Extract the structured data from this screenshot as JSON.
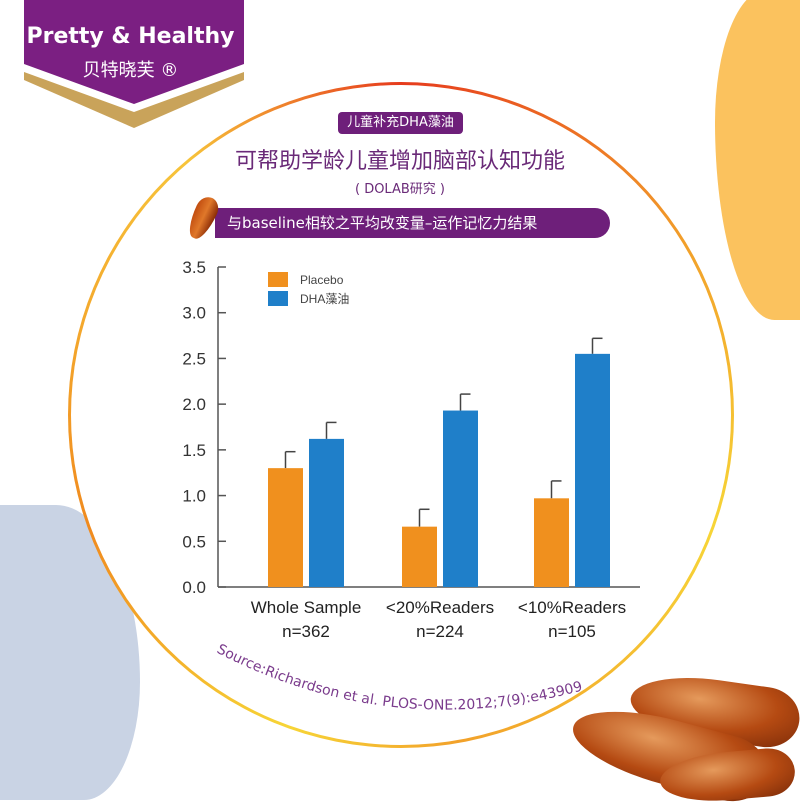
{
  "brand": {
    "name_en": "Pretty & Healthy",
    "name_cn": "贝特晓芙 ®",
    "color": "#7b1f82",
    "gold": "#c9a35a"
  },
  "header": {
    "badge": "儿童补充DHA藻油",
    "headline": "可帮助学龄儿童增加脑部认知功能",
    "study": "( DOLAB研究 )",
    "banner": "与baseline相较之平均改变量–运作记忆力结果"
  },
  "source": "Source:Richardson et al. PLOS-ONE.2012;7(9):e43909",
  "chart_data": {
    "type": "bar",
    "title": "与baseline相较之平均改变量–运作记忆力结果",
    "categories": [
      "Whole Sample",
      "<20%Readers",
      "<10%Readers"
    ],
    "category_n": [
      "n=362",
      "n=224",
      "n=105"
    ],
    "series": [
      {
        "name": "Placebo",
        "color": "#f0901e",
        "values": [
          1.3,
          0.66,
          0.97
        ],
        "error_upper": [
          1.48,
          0.85,
          1.16
        ]
      },
      {
        "name": "DHA藻油",
        "color": "#1f7fc9",
        "values": [
          1.62,
          1.93,
          2.55
        ],
        "error_upper": [
          1.8,
          2.11,
          2.72
        ]
      }
    ],
    "yticks": [
      "0.0",
      "0.5",
      "1.0",
      "1.5",
      "2.0",
      "2.5",
      "3.0",
      "3.5"
    ],
    "ylim": [
      0,
      3.5
    ],
    "xlabel": "",
    "ylabel": "",
    "legend": "top-left",
    "grid": false
  }
}
